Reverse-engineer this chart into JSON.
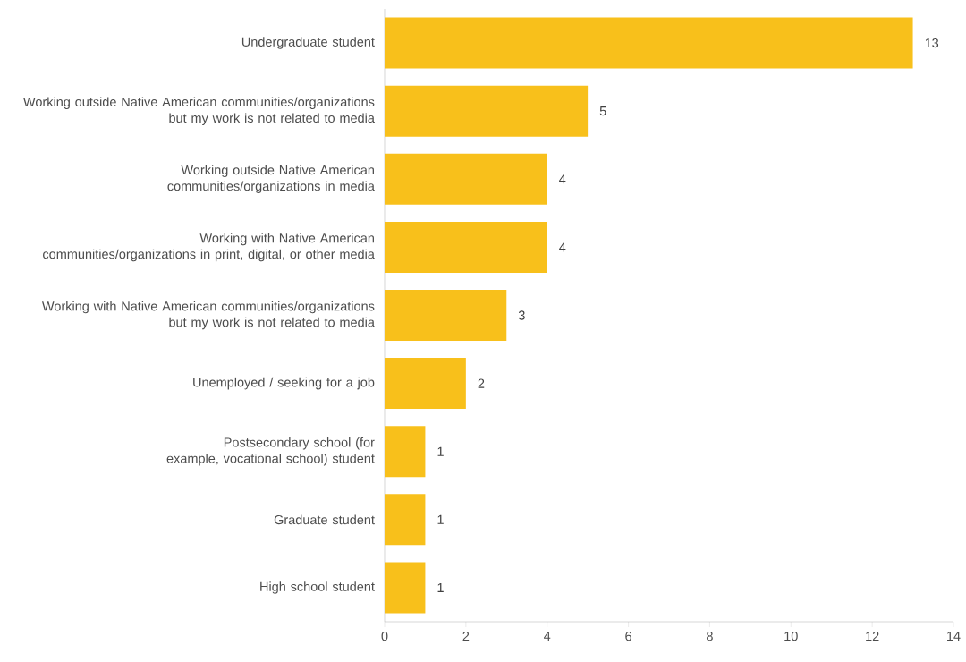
{
  "chart_data": {
    "type": "bar",
    "orientation": "horizontal",
    "categories": [
      "Undergraduate student",
      "Working outside Native American communities/organizations but my work is not related to media",
      "Working outside Native American communities/organizations in media",
      "Working with Native American communities/organizations in print, digital, or other media",
      "Working with Native American communities/organizations but my work is not related to media",
      "Unemployed / seeking for a job",
      "Postsecondary school (for example, vocational school) student",
      "Graduate student",
      "High school student"
    ],
    "values": [
      13,
      5,
      4,
      4,
      3,
      2,
      1,
      1,
      1
    ],
    "color": "#f8c01b",
    "xlim": [
      0,
      14
    ],
    "xticks": [
      0,
      2,
      4,
      6,
      8,
      10,
      12,
      14
    ],
    "data_labels": true
  }
}
